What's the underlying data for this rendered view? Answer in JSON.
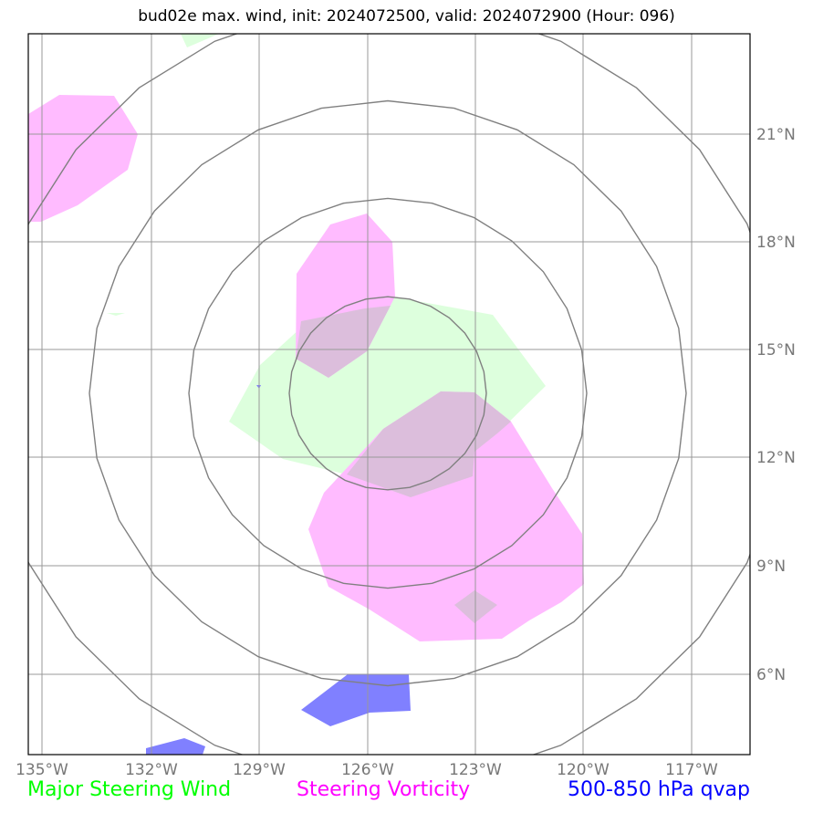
{
  "title": "bud02e max. wind, init: 2024072500, valid: 2024072900 (Hour: 096)",
  "lat_labels": [
    "21°N",
    "18°N",
    "15°N",
    "12°N",
    "9°N",
    "6°N"
  ],
  "lon_labels": [
    "135°W",
    "132°W",
    "129°W",
    "126°W",
    "123°W",
    "120°W",
    "117°W"
  ],
  "legend": {
    "wind": {
      "label": "Major Steering Wind",
      "color": "#00ff00"
    },
    "vorticity": {
      "label": "Steering Vorticity",
      "color": "#ff00ff"
    },
    "qvap": {
      "label": "500-850 hPa qvap",
      "color": "#0000ff"
    }
  },
  "colors": {
    "wind_fill": "#ddffdd",
    "vorticity_fill": "#ffbbff",
    "qvap_fill": "#8080ff",
    "grid": "#999999",
    "rings": "#808080"
  }
}
